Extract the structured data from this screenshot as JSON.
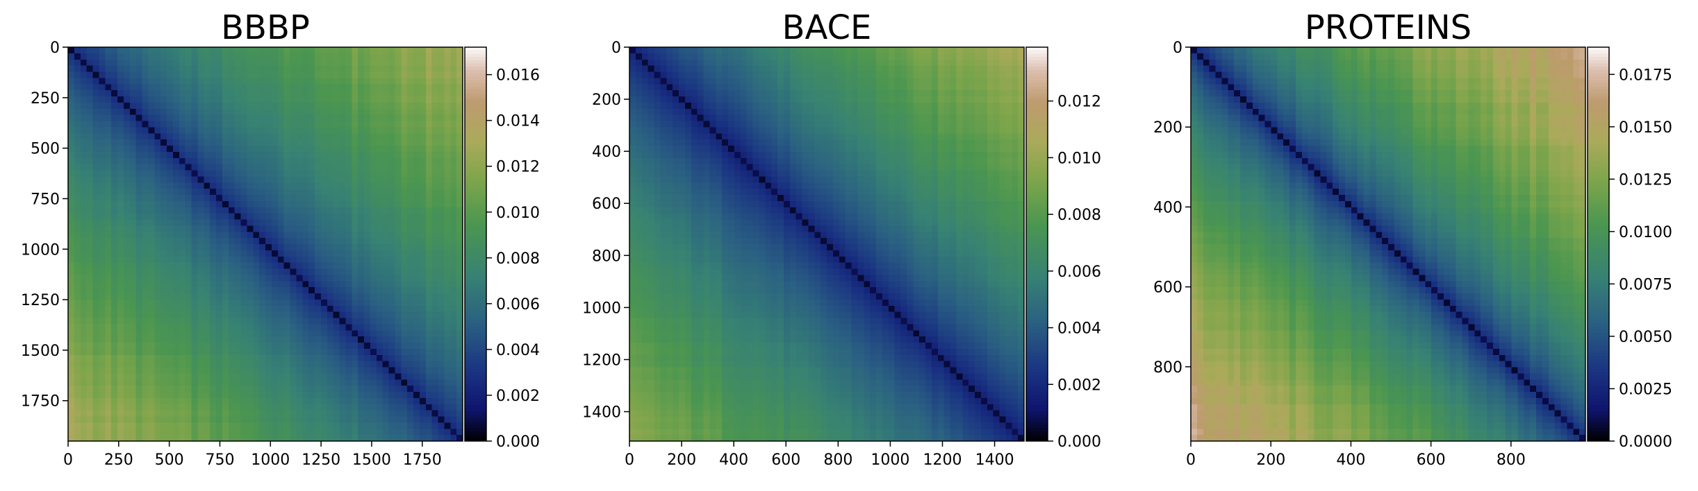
{
  "chart_data": [
    {
      "type": "heatmap",
      "title": "BBBP",
      "xlabel": "",
      "ylabel": "",
      "xlim": [
        0,
        1950
      ],
      "ylim": [
        1950,
        0
      ],
      "xticks": [
        0,
        250,
        500,
        750,
        1000,
        1250,
        1500,
        1750
      ],
      "xtick_labels": [
        "0",
        "250",
        "500",
        "750",
        "1000",
        "1250",
        "1500",
        "1750"
      ],
      "yticks": [
        0,
        250,
        500,
        750,
        1000,
        1250,
        1500,
        1750
      ],
      "ytick_labels": [
        "0",
        "250",
        "500",
        "750",
        "1000",
        "1250",
        "1500",
        "1750"
      ],
      "colormap": "gist_earth",
      "colorbar": {
        "range": [
          0,
          0.0172
        ],
        "ticks": [
          0,
          0.002,
          0.004,
          0.006,
          0.008,
          0.01,
          0.012,
          0.014,
          0.016
        ],
        "tick_labels": [
          "0.000",
          "0.002",
          "0.004",
          "0.006",
          "0.008",
          "0.010",
          "0.012",
          "0.014",
          "0.016"
        ]
      },
      "pattern": "near-zero values along the main diagonal, increasing toward the off-diagonal corners; highest in the upper-right and lower-left corners (about 0.012 to 0.013)"
    },
    {
      "type": "heatmap",
      "title": "BACE",
      "xlabel": "",
      "ylabel": "",
      "xlim": [
        0,
        1513
      ],
      "ylim": [
        1513,
        0
      ],
      "xticks": [
        0,
        200,
        400,
        600,
        800,
        1000,
        1200,
        1400
      ],
      "xtick_labels": [
        "0",
        "200",
        "400",
        "600",
        "800",
        "1000",
        "1200",
        "1400"
      ],
      "yticks": [
        0,
        200,
        400,
        600,
        800,
        1000,
        1200,
        1400
      ],
      "ytick_labels": [
        "0",
        "200",
        "400",
        "600",
        "800",
        "1000",
        "1200",
        "1400"
      ],
      "colormap": "gist_earth",
      "colorbar": {
        "range": [
          0,
          0.0139
        ],
        "ticks": [
          0,
          0.002,
          0.004,
          0.006,
          0.008,
          0.01,
          0.012
        ],
        "tick_labels": [
          "0.000",
          "0.002",
          "0.004",
          "0.006",
          "0.008",
          "0.010",
          "0.012"
        ]
      },
      "pattern": "low values on the main diagonal with a broad dark band, rising toward the corners; top-right corner about 0.011, the rest mostly 0.004 to 0.008"
    },
    {
      "type": "heatmap",
      "title": "PROTEINS",
      "xlabel": "",
      "ylabel": "",
      "xlim": [
        0,
        986
      ],
      "ylim": [
        986,
        0
      ],
      "xticks": [
        0,
        200,
        400,
        600,
        800
      ],
      "xtick_labels": [
        "0",
        "200",
        "400",
        "600",
        "800"
      ],
      "yticks": [
        0,
        200,
        400,
        600,
        800
      ],
      "ytick_labels": [
        "0",
        "200",
        "400",
        "600",
        "800"
      ],
      "colormap": "gist_earth",
      "colorbar": {
        "range": [
          0,
          0.0188
        ],
        "ticks": [
          0,
          0.0025,
          0.005,
          0.0075,
          0.01,
          0.0125,
          0.015,
          0.0175
        ],
        "tick_labels": [
          "0.0000",
          "0.0025",
          "0.0050",
          "0.0075",
          "0.0100",
          "0.0125",
          "0.0150",
          "0.0175"
        ]
      },
      "pattern": "narrow dark diagonal; values rise steeply away from it, reaching about 0.015 to 0.016 in the top-right and bottom-left corners"
    }
  ]
}
